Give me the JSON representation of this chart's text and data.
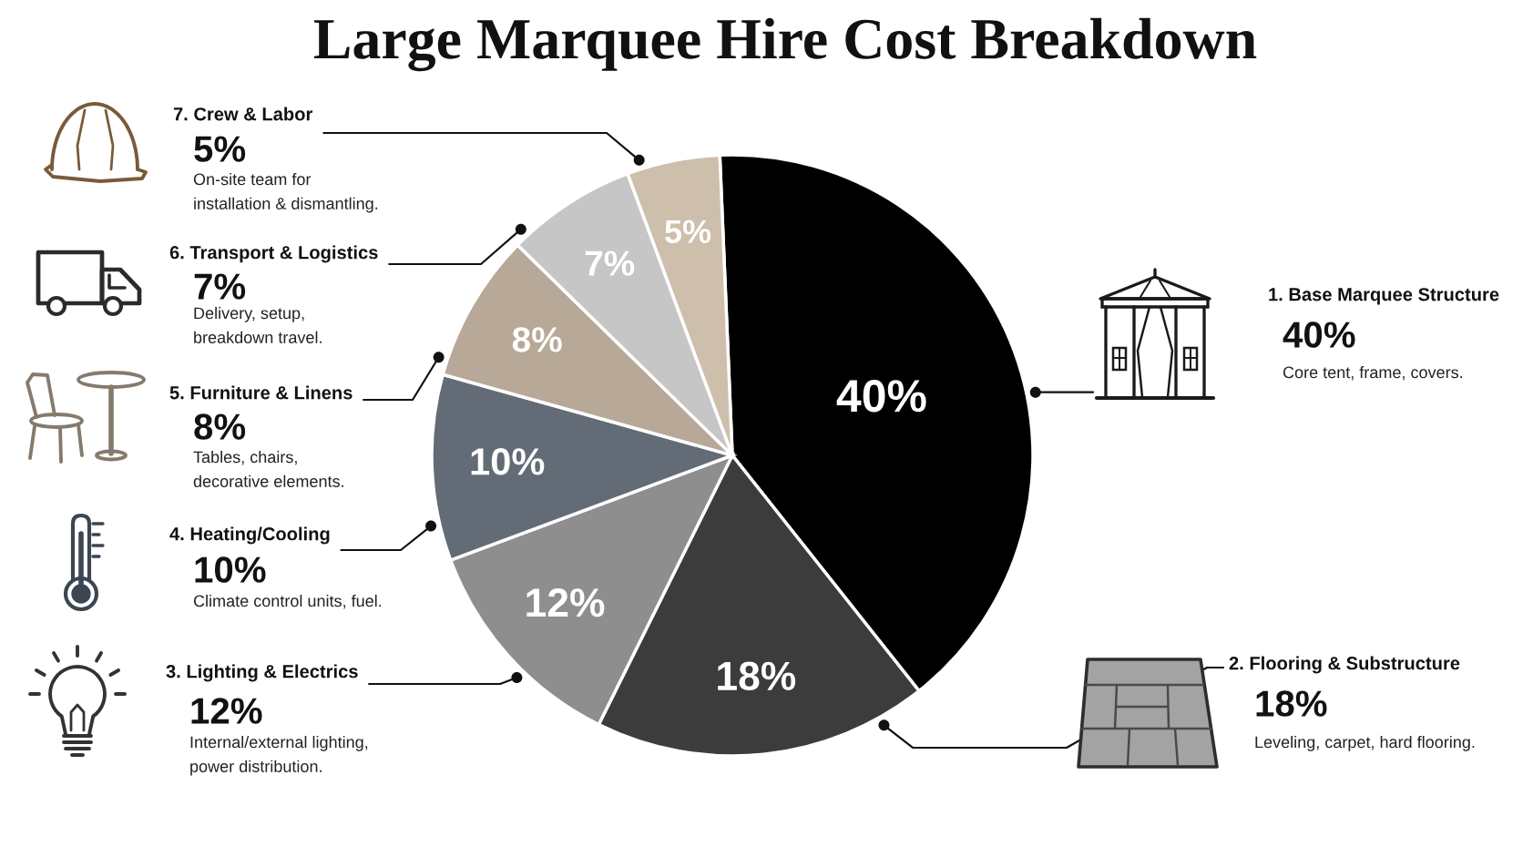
{
  "chart_data": {
    "type": "pie",
    "title": "Large Marquee Hire Cost Breakdown",
    "categories": [
      "1. Base Marquee Structure",
      "2. Flooring & Substructure",
      "3. Lighting & Electrics",
      "4. Heating/Cooling",
      "5. Furniture & Linens",
      "6. Transport & Logistics",
      "7. Crew & Labor"
    ],
    "values": [
      40,
      18,
      12,
      10,
      8,
      7,
      5
    ],
    "value_labels": [
      "40%",
      "18%",
      "12%",
      "10%",
      "8%",
      "7%",
      "5%"
    ],
    "colors": [
      "#000000",
      "#3c3c3c",
      "#8e8e8e",
      "#636c76",
      "#b8a897",
      "#c6c6c6",
      "#cdbfac"
    ],
    "annotations": [
      "Core tent, frame, covers.",
      "Leveling, carpet, hard flooring.",
      "Internal/external lighting,\npower distribution.",
      "Climate control units, fuel.",
      "Tables, chairs,\ndecorative elements.",
      "Delivery, setup,\nbreakdown travel.",
      "On-site team for\ninstallation & dismantling."
    ]
  }
}
